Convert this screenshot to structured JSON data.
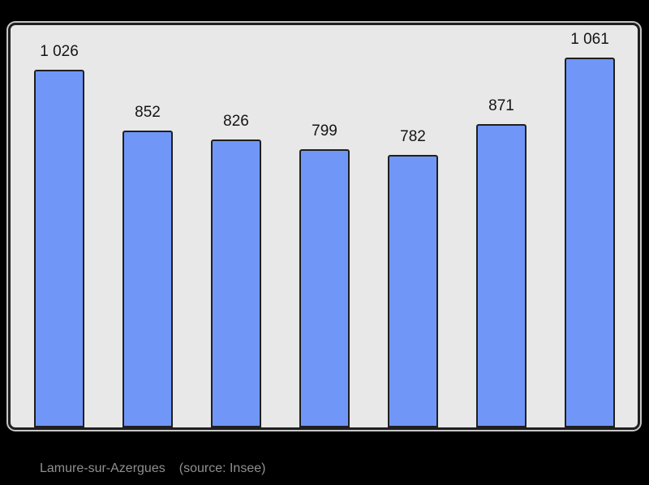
{
  "chart_data": {
    "type": "bar",
    "title": "",
    "values": [
      1026,
      852,
      826,
      799,
      782,
      871,
      1061
    ],
    "data_labels": [
      "1 026",
      "852",
      "826",
      "799",
      "782",
      "871",
      "1 061"
    ],
    "ylim": [
      0,
      1150
    ],
    "grid": false,
    "legend": "none",
    "caption": "Lamure-sur-Azergues",
    "source": "(source: Insee)"
  },
  "colors": {
    "page_bg": "#000000",
    "plot_bg": "#e8e8e8",
    "panel_border": "#1f1f1f",
    "panel_outline": "#ffffff",
    "bar_fill": "#7097f8",
    "bar_border": "#1f1f1f",
    "label_text": "#141414",
    "caption_text": "#8f8f8f"
  }
}
